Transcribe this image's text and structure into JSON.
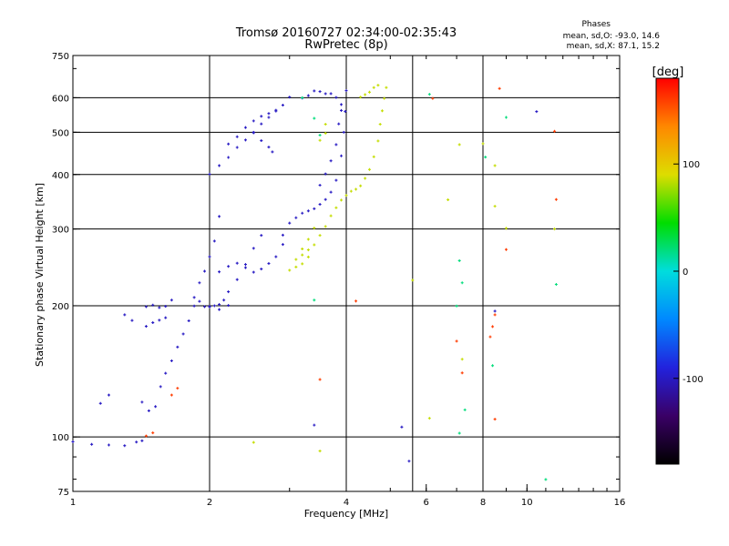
{
  "header": {
    "title": "Tromsø 20160727 02:34:00-02:35:43",
    "subtitle": "RwPretec (8p)"
  },
  "stats": {
    "label": "Phases",
    "o_line": "mean, sd,O: -93.0, 14.6",
    "x_line": "mean, sd,X:  87.1, 15.2"
  },
  "chart_data": {
    "type": "scatter",
    "xlabel": "Frequency [MHz]",
    "ylabel": "Stationary phase Virtual Height [km]",
    "x_scale": "log",
    "y_scale": "log",
    "xlim": [
      1,
      16
    ],
    "ylim": [
      75,
      750
    ],
    "x_ticks": [
      1,
      2,
      4,
      6,
      8,
      10,
      16
    ],
    "x_tick_labels": [
      "1",
      "2",
      "4",
      "6",
      "8",
      "10",
      "16"
    ],
    "y_ticks": [
      75,
      100,
      200,
      300,
      400,
      500,
      600,
      750
    ],
    "y_tick_labels": [
      "75",
      "100",
      "200",
      "300",
      "400",
      "500",
      "600",
      "750"
    ],
    "x_gridlines": [
      2,
      4,
      5.6,
      8
    ],
    "y_gridlines": [
      100,
      200,
      300,
      400,
      500,
      600
    ],
    "grid": true,
    "colorbar": {
      "label": "[deg]",
      "range": [
        -180,
        180
      ],
      "ticks": [
        -100,
        0,
        100
      ],
      "tick_labels": [
        "-100",
        "0",
        "100"
      ],
      "colors": [
        "#000000",
        "#3a0066",
        "#2222dd",
        "#0088ff",
        "#00dddd",
        "#00dd00",
        "#dddd00",
        "#ff8800",
        "#ff0000"
      ]
    },
    "series": [
      {
        "description": "O-mode trace",
        "phase_deg": -100,
        "points": [
          [
            1.0,
            97
          ],
          [
            1.1,
            96
          ],
          [
            1.2,
            96
          ],
          [
            1.3,
            96
          ],
          [
            1.38,
            97
          ],
          [
            1.42,
            98
          ],
          [
            1.45,
            180
          ],
          [
            1.5,
            182
          ],
          [
            1.55,
            185
          ],
          [
            1.6,
            188
          ],
          [
            1.45,
            200
          ],
          [
            1.5,
            200
          ],
          [
            1.55,
            198
          ],
          [
            1.6,
            200
          ],
          [
            1.65,
            205
          ],
          [
            1.42,
            120
          ],
          [
            1.47,
            115
          ],
          [
            1.52,
            118
          ],
          [
            1.56,
            130
          ],
          [
            1.6,
            140
          ],
          [
            1.65,
            150
          ],
          [
            1.7,
            160
          ],
          [
            1.75,
            172
          ],
          [
            1.8,
            185
          ],
          [
            1.85,
            210
          ],
          [
            1.9,
            225
          ],
          [
            1.95,
            240
          ],
          [
            2.0,
            260
          ],
          [
            2.05,
            280
          ],
          [
            2.1,
            320
          ],
          [
            1.9,
            205
          ],
          [
            1.95,
            200
          ],
          [
            2.0,
            198
          ],
          [
            2.05,
            200
          ],
          [
            2.1,
            202
          ],
          [
            2.15,
            205
          ],
          [
            2.2,
            215
          ],
          [
            2.3,
            230
          ],
          [
            2.4,
            250
          ],
          [
            2.5,
            270
          ],
          [
            2.6,
            290
          ],
          [
            2.1,
            240
          ],
          [
            2.2,
            245
          ],
          [
            2.3,
            250
          ],
          [
            2.4,
            245
          ],
          [
            2.5,
            240
          ],
          [
            2.6,
            242
          ],
          [
            2.7,
            250
          ],
          [
            2.8,
            260
          ],
          [
            2.9,
            275
          ],
          [
            2.9,
            290
          ],
          [
            3.0,
            310
          ],
          [
            3.1,
            320
          ],
          [
            3.2,
            325
          ],
          [
            3.3,
            330
          ],
          [
            3.4,
            335
          ],
          [
            3.5,
            340
          ],
          [
            3.6,
            350
          ],
          [
            3.7,
            365
          ],
          [
            3.8,
            390
          ],
          [
            3.9,
            440
          ],
          [
            3.95,
            500
          ],
          [
            3.98,
            560
          ],
          [
            4.0,
            620
          ],
          [
            2.0,
            400
          ],
          [
            2.1,
            420
          ],
          [
            2.2,
            440
          ],
          [
            2.3,
            460
          ],
          [
            2.4,
            480
          ],
          [
            2.5,
            500
          ],
          [
            2.6,
            520
          ],
          [
            2.7,
            540
          ],
          [
            2.8,
            560
          ],
          [
            2.9,
            580
          ],
          [
            3.0,
            600
          ],
          [
            2.2,
            470
          ],
          [
            2.3,
            490
          ],
          [
            2.4,
            510
          ],
          [
            2.5,
            530
          ],
          [
            2.6,
            545
          ],
          [
            2.7,
            555
          ],
          [
            2.8,
            560
          ],
          [
            2.5,
            500
          ],
          [
            2.6,
            480
          ],
          [
            2.7,
            460
          ],
          [
            2.75,
            450
          ],
          [
            3.2,
            600
          ],
          [
            3.3,
            610
          ],
          [
            3.4,
            620
          ],
          [
            3.5,
            620
          ],
          [
            3.6,
            615
          ],
          [
            3.7,
            610
          ],
          [
            3.8,
            600
          ],
          [
            3.9,
            580
          ],
          [
            3.5,
            380
          ],
          [
            3.6,
            400
          ],
          [
            3.7,
            430
          ],
          [
            3.8,
            470
          ],
          [
            3.85,
            520
          ],
          [
            3.9,
            560
          ],
          [
            1.2,
            125
          ],
          [
            1.15,
            120
          ],
          [
            1.3,
            190
          ],
          [
            1.35,
            185
          ],
          [
            2.0,
            200
          ],
          [
            2.1,
            195
          ],
          [
            2.2,
            200
          ],
          [
            1.85,
            200
          ],
          [
            3.4,
            107
          ],
          [
            5.3,
            105
          ],
          [
            5.5,
            88
          ],
          [
            8.5,
            195
          ],
          [
            10.5,
            555
          ]
        ]
      },
      {
        "description": "X-mode trace",
        "phase_deg": 85,
        "points": [
          [
            3.0,
            240
          ],
          [
            3.1,
            245
          ],
          [
            3.2,
            250
          ],
          [
            3.3,
            260
          ],
          [
            3.4,
            275
          ],
          [
            3.5,
            290
          ],
          [
            3.6,
            305
          ],
          [
            3.7,
            320
          ],
          [
            3.8,
            335
          ],
          [
            3.9,
            350
          ],
          [
            4.0,
            360
          ],
          [
            4.1,
            365
          ],
          [
            4.2,
            370
          ],
          [
            4.3,
            378
          ],
          [
            4.4,
            390
          ],
          [
            4.5,
            410
          ],
          [
            4.6,
            440
          ],
          [
            4.7,
            480
          ],
          [
            4.75,
            520
          ],
          [
            4.8,
            560
          ],
          [
            4.85,
            600
          ],
          [
            4.9,
            630
          ],
          [
            3.1,
            255
          ],
          [
            3.2,
            262
          ],
          [
            3.3,
            270
          ],
          [
            4.3,
            600
          ],
          [
            4.4,
            610
          ],
          [
            4.5,
            620
          ],
          [
            4.6,
            630
          ],
          [
            4.7,
            640
          ],
          [
            3.5,
            480
          ],
          [
            3.6,
            500
          ],
          [
            3.6,
            520
          ],
          [
            3.2,
            270
          ],
          [
            3.3,
            285
          ],
          [
            3.4,
            300
          ],
          [
            2.5,
            97
          ],
          [
            3.5,
            93
          ],
          [
            5.6,
            230
          ],
          [
            6.1,
            110
          ],
          [
            6.7,
            350
          ],
          [
            7.1,
            470
          ],
          [
            7.2,
            150
          ],
          [
            8.0,
            470
          ],
          [
            8.5,
            420
          ],
          [
            8.5,
            340
          ],
          [
            9.0,
            300
          ],
          [
            11.5,
            300
          ]
        ]
      },
      {
        "description": "scattered points",
        "phase_deg": 160,
        "points": [
          [
            1.45,
            100
          ],
          [
            1.5,
            102
          ],
          [
            1.65,
            125
          ],
          [
            1.7,
            130
          ],
          [
            3.5,
            135
          ],
          [
            4.2,
            205
          ],
          [
            6.2,
            600
          ],
          [
            7.0,
            165
          ],
          [
            7.2,
            140
          ],
          [
            8.3,
            170
          ],
          [
            8.4,
            180
          ],
          [
            8.5,
            190
          ],
          [
            8.7,
            630
          ],
          [
            9.0,
            270
          ],
          [
            11.5,
            500
          ],
          [
            11.6,
            350
          ],
          [
            8.5,
            110
          ]
        ]
      },
      {
        "description": "cyan/green scattered points",
        "phase_deg": 20,
        "points": [
          [
            3.4,
            205
          ],
          [
            6.1,
            610
          ],
          [
            7.0,
            200
          ],
          [
            7.1,
            255
          ],
          [
            7.2,
            225
          ],
          [
            7.1,
            102
          ],
          [
            8.1,
            440
          ],
          [
            8.4,
            145
          ],
          [
            9.0,
            540
          ],
          [
            11.0,
            80
          ],
          [
            11.6,
            225
          ],
          [
            7.3,
            115
          ],
          [
            3.2,
            600
          ],
          [
            3.4,
            540
          ],
          [
            3.5,
            490
          ]
        ]
      }
    ]
  }
}
